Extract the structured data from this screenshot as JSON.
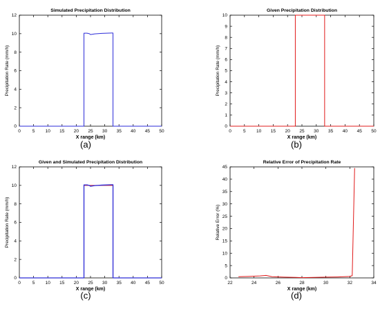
{
  "chart_data": [
    {
      "type": "line",
      "title": "Simulated Precipitation Distribution",
      "xlabel": "X range   (km)",
      "ylabel": "Precipitation Rate   (mm/h)",
      "caption": "(a)",
      "xlim": [
        0,
        50
      ],
      "ylim": [
        0,
        12
      ],
      "xticks": [
        0,
        5,
        10,
        15,
        20,
        25,
        30,
        35,
        40,
        45,
        50
      ],
      "yticks": [
        0,
        2,
        4,
        6,
        8,
        10,
        12
      ],
      "grid": false,
      "series": [
        {
          "color": "#2a2ad8",
          "x": [
            0,
            22.7,
            22.7,
            23.8,
            24.6,
            25.0,
            26.5,
            29.0,
            32.4,
            32.9,
            32.9,
            50
          ],
          "y": [
            0,
            0,
            10.05,
            10.05,
            10.0,
            9.9,
            9.98,
            10.03,
            10.07,
            10.07,
            0,
            0
          ]
        }
      ]
    },
    {
      "type": "line",
      "title": "Given Precipitation Distribution",
      "xlabel": "X range   (km)",
      "ylabel": "Precipitation Rate   (mm/h)",
      "caption": "(b)",
      "xlim": [
        0,
        50
      ],
      "ylim": [
        0,
        10
      ],
      "xticks": [
        0,
        5,
        10,
        15,
        20,
        25,
        30,
        35,
        40,
        45,
        50
      ],
      "yticks": [
        0,
        1,
        2,
        3,
        4,
        5,
        6,
        7,
        8,
        9,
        10
      ],
      "grid": false,
      "series": [
        {
          "color": "#e01818",
          "x": [
            0,
            22.7,
            22.7,
            32.9,
            32.9,
            50
          ],
          "y": [
            0,
            0,
            10,
            10,
            0,
            0
          ]
        }
      ]
    },
    {
      "type": "line",
      "title": "Given and Simulated Precipitation Distribution",
      "xlabel": "X range   (km)",
      "ylabel": "Precipitation Rate   (mm/h)",
      "caption": "(c)",
      "xlim": [
        0,
        50
      ],
      "ylim": [
        0,
        12
      ],
      "xticks": [
        0,
        5,
        10,
        15,
        20,
        25,
        30,
        35,
        40,
        45,
        50
      ],
      "yticks": [
        0,
        2,
        4,
        6,
        8,
        10,
        12
      ],
      "grid": false,
      "series": [
        {
          "color": "#e01818",
          "x": [
            0,
            22.7,
            22.7,
            32.9,
            32.9,
            50
          ],
          "y": [
            0,
            0,
            10,
            10,
            0,
            0
          ]
        },
        {
          "color": "#2a2ad8",
          "x": [
            0,
            22.7,
            22.7,
            23.8,
            24.6,
            25.0,
            26.5,
            29.0,
            32.4,
            32.9,
            32.9,
            50
          ],
          "y": [
            0,
            0,
            10.05,
            10.05,
            10.0,
            9.9,
            9.98,
            10.03,
            10.07,
            10.07,
            0,
            0
          ]
        }
      ]
    },
    {
      "type": "line",
      "title": "Relative Error of Precipitation Rate",
      "xlabel": "X range   (km)",
      "ylabel": "Relative Error   (%)",
      "caption": "(d)",
      "xlim": [
        22,
        34
      ],
      "ylim": [
        0,
        45
      ],
      "xticks": [
        22,
        24,
        26,
        28,
        30,
        32,
        34
      ],
      "yticks": [
        0,
        5,
        10,
        15,
        20,
        25,
        30,
        35,
        40,
        45
      ],
      "grid": false,
      "series": [
        {
          "color": "#e01818",
          "x": [
            22.7,
            23.5,
            24.5,
            25.0,
            25.5,
            26.5,
            27.5,
            28.0,
            29.0,
            30.0,
            31.0,
            32.0,
            32.2,
            32.4
          ],
          "y": [
            0.5,
            0.6,
            0.8,
            1.0,
            0.5,
            0.3,
            0.2,
            0.1,
            0.2,
            0.3,
            0.4,
            0.6,
            0.9,
            44.5
          ]
        }
      ]
    }
  ]
}
